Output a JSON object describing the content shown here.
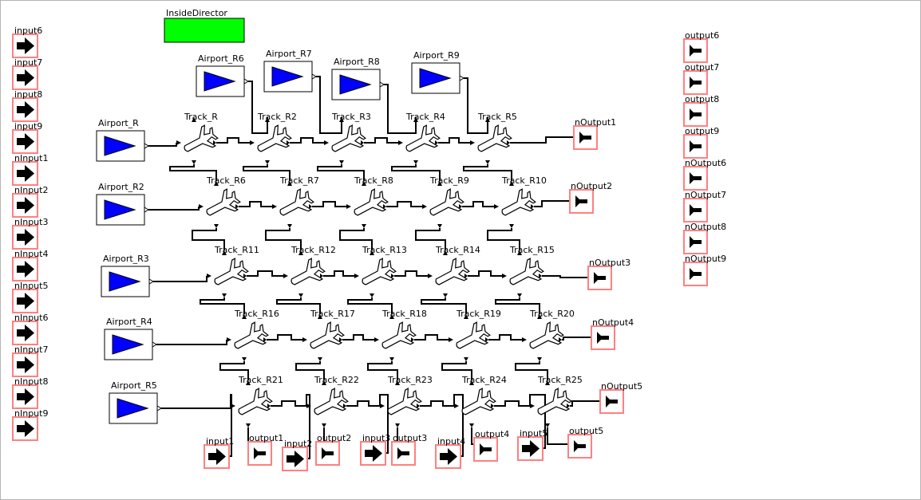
{
  "director": {
    "label": "InsideDirector",
    "color": "#00ff00"
  },
  "colors": {
    "airport_triangle": "#0000ff",
    "port_highlight": "#ff8080",
    "link": "#000000"
  },
  "left_ports": [
    "input6",
    "input7",
    "input8",
    "input9",
    "nInput1",
    "nInput2",
    "nInput3",
    "nInput4",
    "nInput5",
    "nInput6",
    "nInput7",
    "nInput8",
    "nInput9"
  ],
  "right_ports": [
    "output6",
    "output7",
    "output8",
    "output9",
    "nOutput6",
    "nOutput7",
    "nOutput8",
    "nOutput9"
  ],
  "airports_left": [
    "Airport_R",
    "Airport_R2",
    "Airport_R3",
    "Airport_R4",
    "Airport_R5"
  ],
  "airports_top": [
    "Airport_R6",
    "Airport_R7",
    "Airport_R8",
    "Airport_R9"
  ],
  "tracks": [
    [
      "Track_R",
      "Track_R2",
      "Track_R3",
      "Track_R4",
      "Track_R5"
    ],
    [
      "Track_R6",
      "Track_R7",
      "Track_R8",
      "Track_R9",
      "Track_R10"
    ],
    [
      "Track_R11",
      "Track_R12",
      "Track_R13",
      "Track_R14",
      "Track_R15"
    ],
    [
      "Track_R16",
      "Track_R17",
      "Track_R18",
      "Track_R19",
      "Track_R20"
    ],
    [
      "Track_R21",
      "Track_R22",
      "Track_R23",
      "Track_R24",
      "Track_R25"
    ]
  ],
  "n_outputs": [
    "nOutput1",
    "nOutput2",
    "nOutput3",
    "nOutput4",
    "nOutput5"
  ],
  "bottom_inputs": [
    "input1",
    "input2",
    "input3",
    "input4",
    "input5"
  ],
  "bottom_outputs": [
    "output1",
    "output2",
    "output3",
    "output4",
    "output5"
  ]
}
